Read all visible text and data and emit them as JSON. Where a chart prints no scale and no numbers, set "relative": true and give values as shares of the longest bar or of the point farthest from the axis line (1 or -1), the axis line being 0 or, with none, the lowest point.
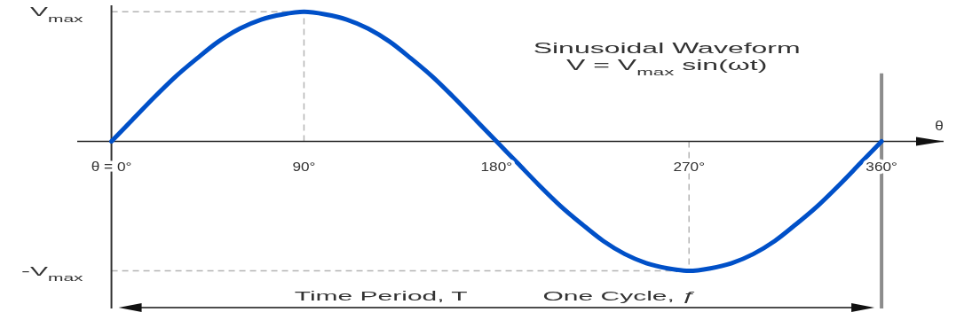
{
  "chart_data": {
    "type": "line",
    "title": "Sinusoidal Waveform",
    "subtitle": "V = V$_{max}$ sin(ωt)",
    "xlabel": "θ",
    "relative": true,
    "x": [
      0,
      10,
      20,
      30,
      40,
      50,
      60,
      70,
      80,
      90,
      100,
      110,
      120,
      130,
      140,
      150,
      160,
      170,
      180,
      190,
      200,
      210,
      220,
      230,
      240,
      250,
      260,
      270,
      280,
      290,
      300,
      310,
      320,
      330,
      340,
      350,
      360
    ],
    "series": [
      {
        "color": "#0050c8",
        "values": [
          0,
          0.17,
          0.34,
          0.5,
          0.64,
          0.77,
          0.87,
          0.94,
          0.98,
          1,
          0.98,
          0.94,
          0.87,
          0.77,
          0.64,
          0.5,
          0.34,
          0.17,
          0,
          -0.17,
          -0.34,
          -0.5,
          -0.64,
          -0.77,
          -0.87,
          -0.94,
          -0.98,
          -1,
          -0.98,
          -0.94,
          -0.87,
          -0.77,
          -0.64,
          -0.5,
          -0.34,
          -0.17,
          0
        ]
      }
    ],
    "xlim": [
      -16,
      389
    ],
    "xticks": [
      {
        "value": 0,
        "label": "θ = 0°"
      },
      {
        "value": 90,
        "label": "90°"
      },
      {
        "value": 180,
        "label": "180°"
      },
      {
        "value": 270,
        "label": "270°"
      },
      {
        "value": 360,
        "label": "360°"
      }
    ],
    "ref_lines": [
      {
        "axis": "x",
        "value": 90,
        "line_style": "dashed",
        "color": "#b4b4b4"
      },
      {
        "axis": "x",
        "value": 270,
        "line_style": "dashed",
        "color": "#b4b4b4"
      },
      {
        "axis": "y",
        "value": -1,
        "label": "-V$_{max}$",
        "line_style": "dashed",
        "color": "#b4b4b4"
      },
      {
        "axis": "x",
        "value": 360,
        "line_style": "solid",
        "color": "#8c8c8c"
      },
      {
        "axis": "y",
        "value": 1,
        "label": "V$_{max}$",
        "line_style": "dashed",
        "color": "#b4b4b4"
      }
    ],
    "annotations": [
      "Time Period, T",
      "One Cycle, ƒ"
    ]
  }
}
